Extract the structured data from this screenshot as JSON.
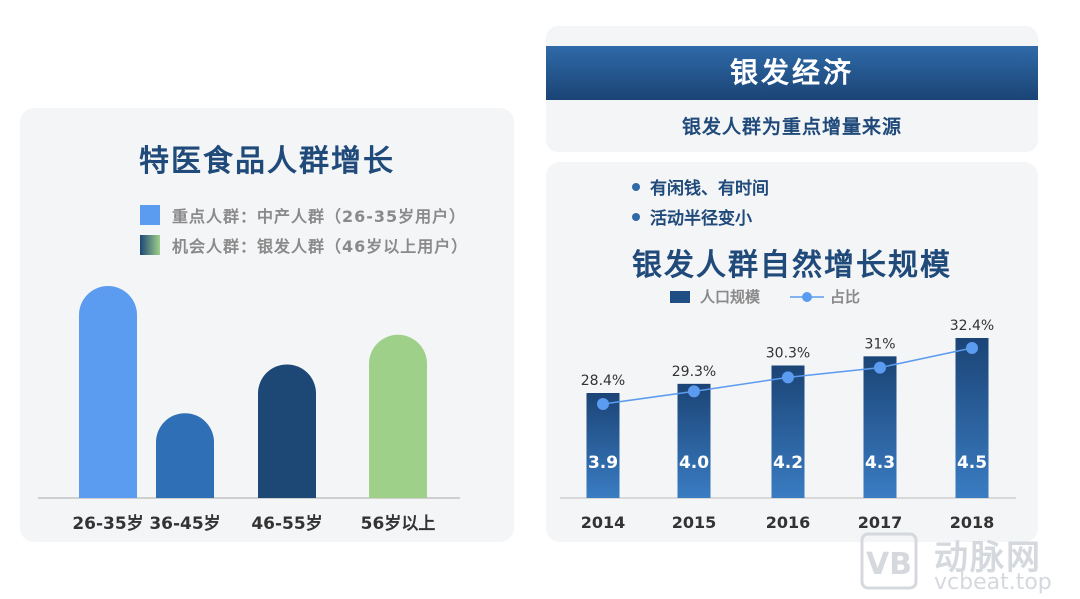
{
  "left": {
    "title": "特医食品人群增长",
    "legend": [
      {
        "label": "重点人群：中产人群（26-35岁用户）",
        "color": "#5b9bf0"
      },
      {
        "label": "机会人群：银发人群（46岁以上用户）",
        "color": "#9fd08a"
      }
    ]
  },
  "header": {
    "title": "银发经济",
    "subtitle": "银发人群为重点增量来源"
  },
  "right": {
    "bullets": [
      "有闲钱、有时间",
      "活动半径变小"
    ],
    "title": "银发人群自然增长规模",
    "legend": {
      "bar": "人口规模",
      "line": "占比"
    }
  },
  "watermark": {
    "cn": "动脉网",
    "en": "vcbeat.top",
    "logo": "VB"
  },
  "chart_data": [
    {
      "type": "bar",
      "categories": [
        "26-35岁",
        "36-45岁",
        "46-55岁",
        "56岁以上"
      ],
      "values": [
        100,
        40,
        63,
        77
      ],
      "colors": [
        "#5b9bf0",
        "#2f6fb6",
        "#1d4775",
        "#9fd08a"
      ],
      "grid": false
    },
    {
      "type": "bar",
      "categories": [
        "2014",
        "2015",
        "2016",
        "2017",
        "2018"
      ],
      "series": [
        {
          "name": "人口规模",
          "values": [
            3.9,
            4.0,
            4.2,
            4.3,
            4.5
          ],
          "labels": [
            "3.9",
            "4.0",
            "4.2",
            "4.3",
            "4.5"
          ],
          "color": "#1f4e85"
        },
        {
          "name": "占比",
          "type": "line",
          "values": [
            28.4,
            29.3,
            30.3,
            31,
            32.4
          ],
          "labels": [
            "28.4%",
            "29.3%",
            "30.3%",
            "31%",
            "32.4%"
          ],
          "color": "#5b9bf0"
        }
      ],
      "grid": false
    }
  ]
}
